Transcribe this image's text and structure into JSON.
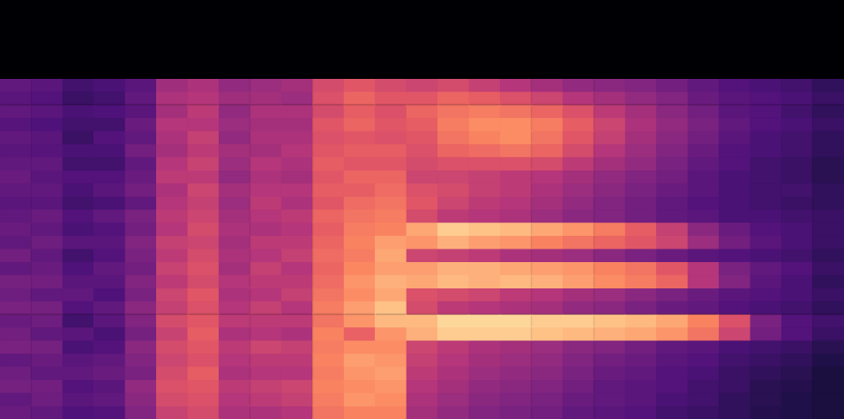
{
  "chart_data": {
    "type": "heatmap",
    "color": "magma",
    "zlim": [
      0,
      100
    ],
    "tick_labels": false,
    "grid": false,
    "cells": [
      [
        0,
        0,
        0,
        0,
        0,
        0,
        30,
        28,
        30,
        27,
        30,
        28,
        30,
        32,
        30,
        28,
        30,
        32,
        30,
        34,
        30,
        35,
        33,
        36,
        32,
        34,
        36,
        30,
        33,
        35,
        30,
        32
      ],
      [
        0,
        0,
        0,
        0,
        0,
        0,
        28,
        26,
        28,
        25,
        28,
        27,
        30,
        28,
        30,
        28,
        32,
        30,
        33,
        30,
        32,
        34,
        30,
        35,
        33,
        30,
        35,
        32,
        30,
        34,
        33,
        30
      ],
      [
        0,
        0,
        0,
        0,
        0,
        0,
        22,
        20,
        24,
        22,
        20,
        24,
        22,
        26,
        24,
        22,
        26,
        24,
        28,
        22,
        25,
        28,
        30,
        26,
        22,
        28,
        24,
        28,
        30,
        26,
        28,
        25
      ],
      [
        0,
        0,
        0,
        0,
        0,
        0,
        24,
        22,
        25,
        22,
        26,
        24,
        22,
        26,
        28,
        24,
        30,
        26,
        28,
        26,
        30,
        28,
        25,
        30,
        28,
        24,
        26,
        30,
        32,
        28,
        30,
        26
      ],
      [
        0,
        0,
        0,
        0,
        0,
        0,
        28,
        30,
        28,
        32,
        30,
        34,
        30,
        32,
        34,
        30,
        36,
        34,
        38,
        36,
        34,
        38,
        36,
        40,
        38,
        35,
        40,
        38,
        36,
        42,
        40,
        38
      ],
      [
        0,
        0,
        0,
        0,
        0,
        0,
        45,
        48,
        46,
        50,
        48,
        46,
        50,
        52,
        48,
        50,
        52,
        50,
        54,
        52,
        55,
        52,
        56,
        54,
        58,
        55,
        58,
        56,
        58,
        60,
        58,
        55
      ],
      [
        0,
        0,
        0,
        0,
        0,
        0,
        48,
        50,
        52,
        50,
        54,
        52,
        55,
        52,
        56,
        54,
        56,
        58,
        56,
        58,
        60,
        58,
        62,
        60,
        62,
        64,
        62,
        60,
        64,
        62,
        60,
        58
      ],
      [
        0,
        0,
        0,
        0,
        0,
        0,
        42,
        45,
        42,
        44,
        42,
        46,
        44,
        42,
        46,
        44,
        46,
        48,
        46,
        48,
        46,
        50,
        48,
        50,
        52,
        48,
        52,
        50,
        48,
        52,
        50,
        48
      ],
      [
        0,
        0,
        0,
        0,
        0,
        0,
        44,
        46,
        48,
        46,
        48,
        46,
        50,
        48,
        50,
        52,
        50,
        48,
        52,
        50,
        54,
        52,
        50,
        54,
        52,
        50,
        56,
        52,
        50,
        54,
        52,
        48
      ],
      [
        0,
        0,
        0,
        0,
        0,
        0,
        46,
        44,
        48,
        46,
        48,
        50,
        48,
        46,
        50,
        48,
        52,
        50,
        52,
        54,
        50,
        52,
        54,
        50,
        52,
        48,
        54,
        52,
        50,
        56,
        54,
        50
      ],
      [
        0,
        0,
        0,
        0,
        0,
        0,
        58,
        60,
        58,
        62,
        60,
        62,
        64,
        62,
        64,
        62,
        66,
        64,
        66,
        68,
        66,
        68,
        70,
        72,
        70,
        74,
        72,
        74,
        72,
        74,
        72,
        70
      ],
      [
        0,
        0,
        0,
        0,
        0,
        0,
        62,
        66,
        64,
        66,
        62,
        64,
        62,
        66,
        64,
        68,
        70,
        72,
        74,
        72,
        75,
        78,
        76,
        80,
        78,
        65,
        76,
        80,
        78,
        76,
        78,
        74
      ],
      [
        0,
        0,
        0,
        0,
        0,
        0,
        58,
        62,
        60,
        62,
        60,
        64,
        62,
        66,
        68,
        70,
        72,
        74,
        80,
        82,
        80,
        84,
        82,
        88,
        86,
        78,
        76,
        78,
        80,
        78,
        76,
        74
      ],
      [
        0,
        0,
        0,
        0,
        0,
        0,
        56,
        62,
        66,
        64,
        62,
        60,
        58,
        56,
        60,
        62,
        58,
        82,
        78,
        56,
        80,
        82,
        60,
        58,
        86,
        84,
        56,
        54,
        52,
        50,
        48,
        46
      ],
      [
        0,
        0,
        0,
        0,
        0,
        0,
        58,
        66,
        70,
        72,
        70,
        66,
        60,
        56,
        58,
        56,
        52,
        90,
        84,
        54,
        84,
        86,
        58,
        52,
        92,
        90,
        52,
        50,
        48,
        46,
        44,
        42
      ],
      [
        0,
        0,
        0,
        0,
        0,
        0,
        54,
        64,
        72,
        76,
        74,
        68,
        60,
        54,
        54,
        52,
        50,
        88,
        80,
        52,
        84,
        84,
        56,
        50,
        92,
        90,
        48,
        46,
        44,
        42,
        40,
        38
      ],
      [
        0,
        0,
        0,
        0,
        0,
        0,
        50,
        60,
        70,
        76,
        76,
        70,
        60,
        52,
        52,
        50,
        48,
        86,
        78,
        48,
        82,
        86,
        52,
        48,
        92,
        90,
        46,
        44,
        42,
        40,
        38,
        36
      ],
      [
        0,
        0,
        0,
        0,
        0,
        0,
        46,
        56,
        66,
        72,
        70,
        66,
        58,
        50,
        48,
        46,
        44,
        82,
        74,
        46,
        80,
        84,
        50,
        46,
        90,
        88,
        44,
        42,
        40,
        38,
        36,
        34
      ],
      [
        0,
        0,
        0,
        0,
        0,
        0,
        42,
        50,
        60,
        64,
        62,
        58,
        52,
        46,
        44,
        42,
        40,
        78,
        70,
        44,
        78,
        80,
        46,
        42,
        90,
        86,
        40,
        38,
        36,
        34,
        32,
        30
      ],
      [
        0,
        0,
        0,
        0,
        0,
        0,
        40,
        46,
        52,
        56,
        54,
        50,
        46,
        42,
        40,
        38,
        38,
        72,
        66,
        40,
        74,
        76,
        44,
        40,
        88,
        84,
        38,
        34,
        32,
        30,
        30,
        28
      ],
      [
        0,
        0,
        0,
        0,
        0,
        0,
        38,
        42,
        46,
        48,
        46,
        44,
        42,
        38,
        36,
        34,
        34,
        64,
        62,
        36,
        70,
        72,
        40,
        36,
        86,
        82,
        34,
        32,
        30,
        28,
        28,
        26
      ],
      [
        0,
        0,
        0,
        0,
        0,
        0,
        34,
        38,
        40,
        42,
        40,
        38,
        36,
        34,
        32,
        30,
        30,
        54,
        56,
        32,
        62,
        66,
        36,
        32,
        82,
        78,
        30,
        28,
        26,
        26,
        24,
        22
      ],
      [
        0,
        0,
        0,
        0,
        0,
        0,
        30,
        32,
        34,
        36,
        34,
        32,
        30,
        28,
        28,
        26,
        28,
        40,
        44,
        28,
        50,
        50,
        32,
        30,
        74,
        70,
        28,
        26,
        24,
        22,
        22,
        20
      ],
      [
        0,
        0,
        0,
        0,
        0,
        0,
        26,
        28,
        28,
        30,
        28,
        26,
        26,
        24,
        24,
        24,
        24,
        32,
        34,
        26,
        36,
        38,
        28,
        26,
        60,
        56,
        24,
        22,
        20,
        20,
        18,
        18
      ],
      [
        0,
        0,
        0,
        0,
        0,
        0,
        24,
        26,
        26,
        26,
        24,
        24,
        22,
        22,
        22,
        22,
        24,
        26,
        28,
        24,
        30,
        28,
        26,
        24,
        36,
        34,
        22,
        20,
        18,
        16,
        16,
        15
      ],
      [
        0,
        0,
        0,
        0,
        0,
        0,
        22,
        24,
        22,
        24,
        22,
        22,
        20,
        20,
        22,
        20,
        22,
        24,
        24,
        22,
        26,
        24,
        24,
        22,
        26,
        26,
        20,
        18,
        16,
        15,
        14,
        14
      ],
      [
        0,
        0,
        0,
        0,
        0,
        0,
        18,
        20,
        18,
        20,
        18,
        18,
        16,
        16,
        18,
        18,
        20,
        20,
        20,
        18,
        20,
        18,
        20,
        18,
        22,
        20,
        16,
        14,
        12,
        12,
        12,
        12
      ]
    ]
  }
}
